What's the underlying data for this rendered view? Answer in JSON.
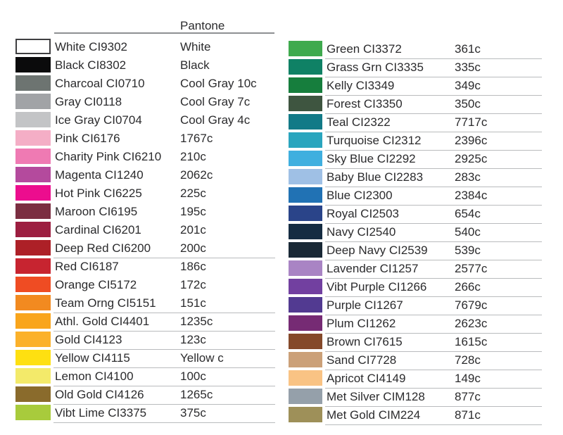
{
  "header": {
    "pantone_label": "Pantone"
  },
  "style": {
    "text_color": "#2b2b2d",
    "header_rule_color": "#8e9092",
    "row_separator_color": "#b9bbbd",
    "white_swatch_border_color": "#3f3f41",
    "background": "#ffffff"
  },
  "columns": [
    {
      "id": "left",
      "rows": [
        {
          "name": "White",
          "code": "CI9302",
          "pantone": "White",
          "color": "#ffffff",
          "bordered": true,
          "underline": false
        },
        {
          "name": "Black",
          "code": "CI8302",
          "pantone": "Black",
          "color": "#0b0b0c",
          "bordered": false,
          "underline": false
        },
        {
          "name": "Charcoal",
          "code": "CI0710",
          "pantone": "Cool Gray 10c",
          "color": "#6d7471",
          "bordered": false,
          "underline": false
        },
        {
          "name": "Gray",
          "code": "CI0118",
          "pantone": "Cool Gray 7c",
          "color": "#a1a3a6",
          "bordered": false,
          "underline": false
        },
        {
          "name": "Ice Gray",
          "code": "CI0704",
          "pantone": "Cool Gray 4c",
          "color": "#c3c4c6",
          "bordered": false,
          "underline": false
        },
        {
          "name": "Pink",
          "code": "CI6176",
          "pantone": "1767c",
          "color": "#f4aec6",
          "bordered": false,
          "underline": false
        },
        {
          "name": "Charity Pink",
          "code": "CI6210",
          "pantone": "210c",
          "color": "#ef7ab3",
          "bordered": false,
          "underline": false
        },
        {
          "name": "Magenta",
          "code": "CI1240",
          "pantone": "2062c",
          "color": "#b44a9d",
          "bordered": false,
          "underline": false
        },
        {
          "name": "Hot Pink",
          "code": "CI6225",
          "pantone": "225c",
          "color": "#ec0d8e",
          "bordered": false,
          "underline": false
        },
        {
          "name": "Maroon",
          "code": "CI6195",
          "pantone": "195c",
          "color": "#7b2e41",
          "bordered": false,
          "underline": false
        },
        {
          "name": "Cardinal",
          "code": "CI6201",
          "pantone": "201c",
          "color": "#9c1e40",
          "bordered": false,
          "underline": false
        },
        {
          "name": "Deep Red",
          "code": "CI6200",
          "pantone": "200c",
          "color": "#ad2027",
          "bordered": false,
          "underline": true
        },
        {
          "name": "Red",
          "code": "CI6187",
          "pantone": "186c",
          "color": "#c72430",
          "bordered": false,
          "underline": false
        },
        {
          "name": "Orange",
          "code": "CI5172",
          "pantone": "172c",
          "color": "#ef4c23",
          "bordered": false,
          "underline": false
        },
        {
          "name": "Team Orng",
          "code": "CI5151",
          "pantone": "151c",
          "color": "#f28a20",
          "bordered": false,
          "underline": true
        },
        {
          "name": "Athl. Gold",
          "code": "CI4401",
          "pantone": "1235c",
          "color": "#f9a51c",
          "bordered": false,
          "underline": true
        },
        {
          "name": "Gold",
          "code": "CI4123",
          "pantone": "123c",
          "color": "#fbb12a",
          "bordered": false,
          "underline": true
        },
        {
          "name": "Yellow",
          "code": "CI4115",
          "pantone": "Yellow c",
          "color": "#fee011",
          "bordered": false,
          "underline": true
        },
        {
          "name": "Lemon",
          "code": "CI4100",
          "pantone": "100c",
          "color": "#f3ea6a",
          "bordered": false,
          "underline": true
        },
        {
          "name": "Old Gold",
          "code": "CI4126",
          "pantone": "1265c",
          "color": "#8a6b2c",
          "bordered": false,
          "underline": true
        },
        {
          "name": "Vibt Lime",
          "code": "CI3375",
          "pantone": "375c",
          "color": "#a8cb3c",
          "bordered": false,
          "underline": true
        }
      ]
    },
    {
      "id": "right",
      "rows": [
        {
          "name": "Green",
          "code": "CI3372",
          "pantone": "361c",
          "color": "#3faa4e",
          "bordered": false,
          "underline": true
        },
        {
          "name": "Grass Grn",
          "code": "CI3335",
          "pantone": "335c",
          "color": "#0f8165",
          "bordered": false,
          "underline": true
        },
        {
          "name": "Kelly",
          "code": "CI3349",
          "pantone": "349c",
          "color": "#167e3d",
          "bordered": false,
          "underline": true
        },
        {
          "name": "Forest",
          "code": "CI3350",
          "pantone": "350c",
          "color": "#3e5540",
          "bordered": false,
          "underline": true
        },
        {
          "name": "Teal",
          "code": "CI2322",
          "pantone": "7717c",
          "color": "#127a87",
          "bordered": false,
          "underline": true
        },
        {
          "name": "Turquoise",
          "code": "CI2312",
          "pantone": "2396c",
          "color": "#2aa5be",
          "bordered": false,
          "underline": true
        },
        {
          "name": "Sky Blue",
          "code": "CI2292",
          "pantone": "2925c",
          "color": "#3fafdf",
          "bordered": false,
          "underline": true
        },
        {
          "name": "Baby Blue",
          "code": "CI2283",
          "pantone": "283c",
          "color": "#9fc0e5",
          "bordered": false,
          "underline": true
        },
        {
          "name": "Blue",
          "code": "CI2300",
          "pantone": "2384c",
          "color": "#2172b4",
          "bordered": false,
          "underline": true
        },
        {
          "name": "Royal",
          "code": "CI2503",
          "pantone": "654c",
          "color": "#2a4489",
          "bordered": false,
          "underline": true
        },
        {
          "name": "Navy",
          "code": "CI2540",
          "pantone": "540c",
          "color": "#152c42",
          "bordered": false,
          "underline": true
        },
        {
          "name": "Deep Navy",
          "code": "CI2539",
          "pantone": "539c",
          "color": "#1a2936",
          "bordered": false,
          "underline": true
        },
        {
          "name": "Lavender",
          "code": "CI1257",
          "pantone": "2577c",
          "color": "#a984c4",
          "bordered": false,
          "underline": true
        },
        {
          "name": "Vibt Purple",
          "code": "CI1266",
          "pantone": "266c",
          "color": "#7240a0",
          "bordered": false,
          "underline": true
        },
        {
          "name": "Purple",
          "code": "CI1267",
          "pantone": "7679c",
          "color": "#523a91",
          "bordered": false,
          "underline": true
        },
        {
          "name": "Plum",
          "code": "CI1262",
          "pantone": "2623c",
          "color": "#762b74",
          "bordered": false,
          "underline": true
        },
        {
          "name": "Brown",
          "code": "CI7615",
          "pantone": "1615c",
          "color": "#85492a",
          "bordered": false,
          "underline": true
        },
        {
          "name": "Sand",
          "code": "CI7728",
          "pantone": "728c",
          "color": "#cba078",
          "bordered": false,
          "underline": true
        },
        {
          "name": "Apricot",
          "code": "CI4149",
          "pantone": "149c",
          "color": "#f9c384",
          "bordered": false,
          "underline": true
        },
        {
          "name": "Met Silver",
          "code": "CIM128",
          "pantone": "877c",
          "color": "#95a0aa",
          "bordered": false,
          "underline": true
        },
        {
          "name": "Met Gold",
          "code": "CIM224",
          "pantone": "871c",
          "color": "#9e9059",
          "bordered": false,
          "underline": true
        }
      ]
    }
  ]
}
